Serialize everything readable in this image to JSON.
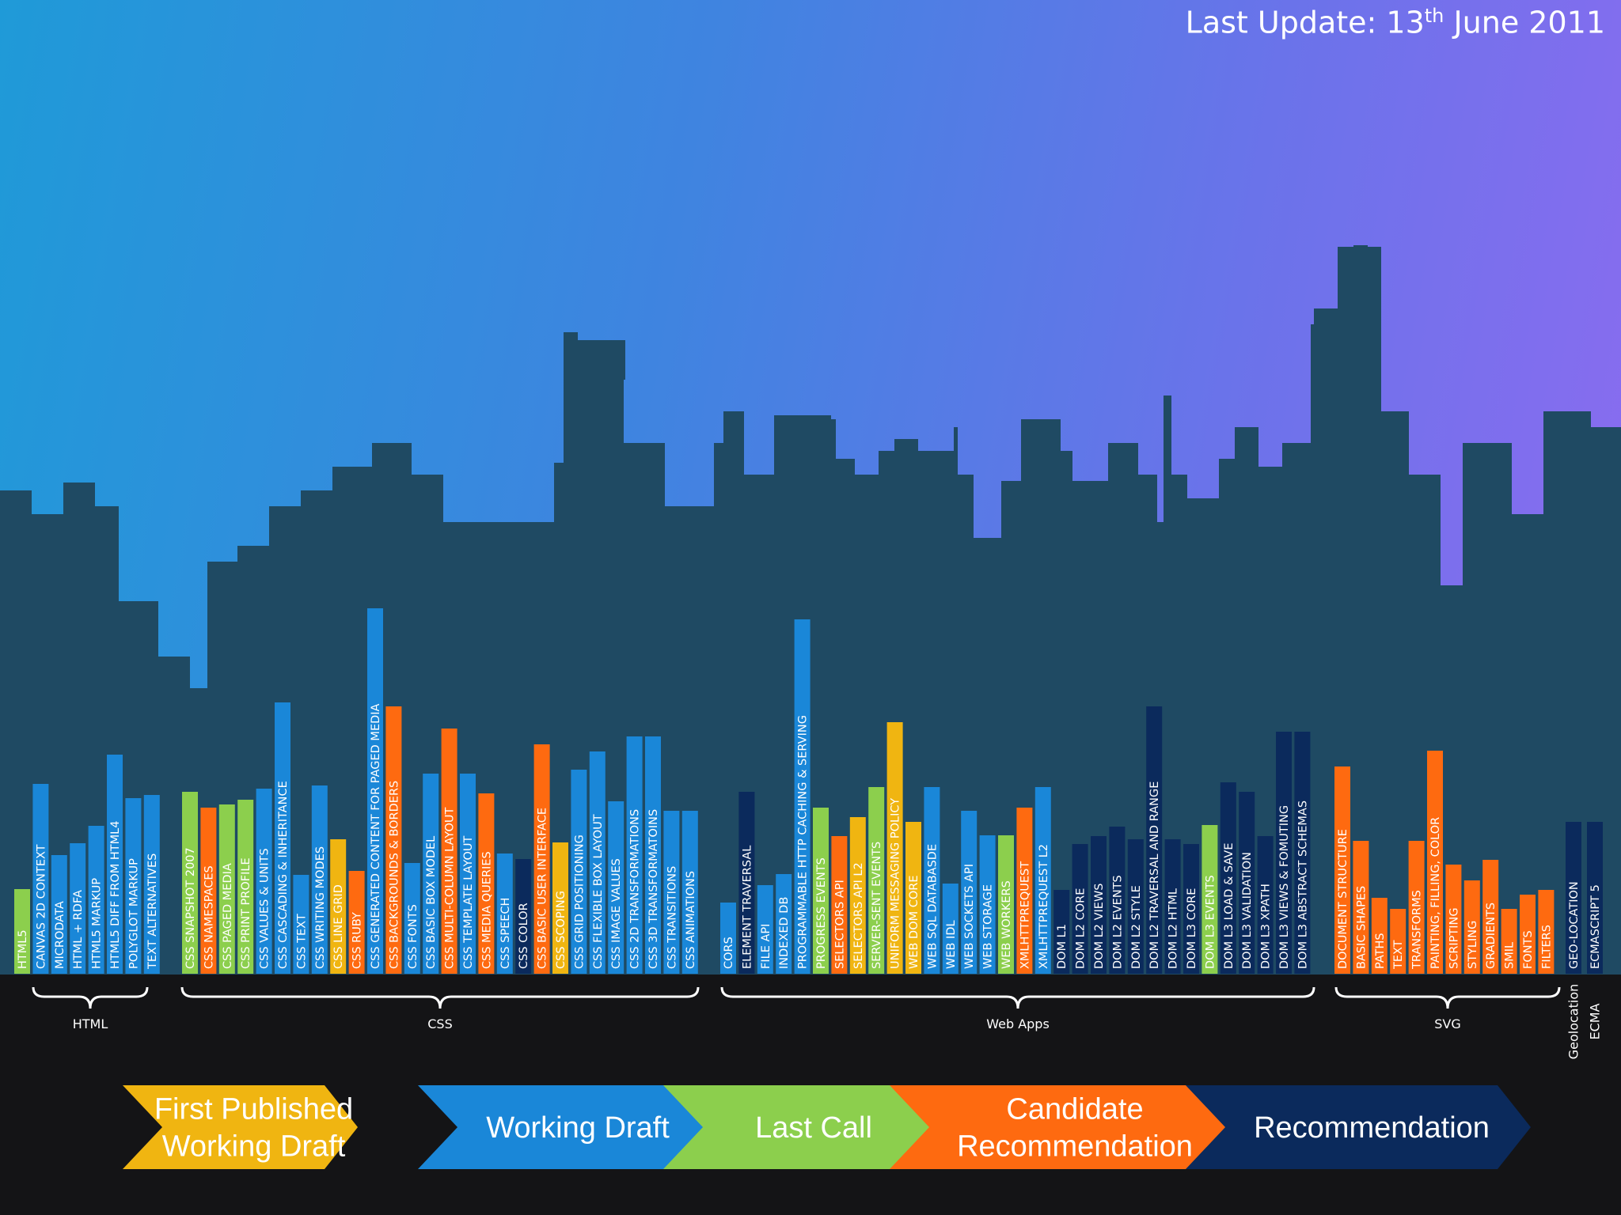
{
  "header": {
    "update_prefix": "Last Update: 13",
    "update_sup": "th",
    "update_suffix": " June 2011"
  },
  "colors": {
    "first_published_working_draft": "#f0b511",
    "working_draft": "#1a87d8",
    "last_call": "#8ccf4d",
    "candidate_recommendation": "#fe6a10",
    "recommendation": "#0b2a5c",
    "skyline": "#1f4a63"
  },
  "legend": [
    {
      "key": "first_published_working_draft",
      "lines": [
        "First Published",
        "Working Draft"
      ]
    },
    {
      "key": "working_draft",
      "lines": [
        "Working Draft"
      ]
    },
    {
      "key": "last_call",
      "lines": [
        "Last Call"
      ]
    },
    {
      "key": "candidate_recommendation",
      "lines": [
        "Candidate",
        "Recommendation"
      ]
    },
    {
      "key": "recommendation",
      "lines": [
        "Recommendation"
      ]
    }
  ],
  "chart_data": {
    "type": "bar",
    "categories": [
      "HTML",
      "CSS",
      "Web Apps",
      "SVG",
      "Geolocation",
      "ECMA"
    ],
    "series": [
      {
        "name": "HTML",
        "bars": [
          {
            "label": "HTML5",
            "status": "last_call",
            "height": 107
          },
          {
            "label": "CANVAS 2D CONTEXT",
            "status": "working_draft",
            "height": 240
          },
          {
            "label": "MICRODATA",
            "status": "working_draft",
            "height": 150
          },
          {
            "label": "HTML + RDFA",
            "status": "working_draft",
            "height": 165
          },
          {
            "label": "HTML5 MARKUP",
            "status": "working_draft",
            "height": 187
          },
          {
            "label": "HTML5 DIFF FROM HTML4",
            "status": "working_draft",
            "height": 277
          },
          {
            "label": "POLYGLOT MARKUP",
            "status": "working_draft",
            "height": 222
          },
          {
            "label": "TEXT ALTERNATIVES",
            "status": "working_draft",
            "height": 226
          }
        ]
      },
      {
        "name": "CSS",
        "bars": [
          {
            "label": "CSS SNAPSHOT 2007",
            "status": "last_call",
            "height": 230
          },
          {
            "label": "CSS NAMESPACES",
            "status": "candidate_recommendation",
            "height": 210
          },
          {
            "label": "CSS PAGED MEDIA",
            "status": "last_call",
            "height": 214
          },
          {
            "label": "CSS PRINT PROFILE",
            "status": "last_call",
            "height": 220
          },
          {
            "label": "CSS VALUES & UNITS",
            "status": "working_draft",
            "height": 234
          },
          {
            "label": "CSS CASCADING & INHERITANCE",
            "status": "working_draft",
            "height": 343
          },
          {
            "label": "CSS TEXT",
            "status": "working_draft",
            "height": 125
          },
          {
            "label": "CSS WRITING MODES",
            "status": "working_draft",
            "height": 238
          },
          {
            "label": "CSS LINE GRID",
            "status": "first_published_working_draft",
            "height": 170
          },
          {
            "label": "CSS RUBY",
            "status": "candidate_recommendation",
            "height": 130
          },
          {
            "label": "CSS GENERATED CONTENT FOR PAGED MEDIA",
            "status": "working_draft",
            "height": 462
          },
          {
            "label": "CSS BACKGROUNDS & BORDERS",
            "status": "candidate_recommendation",
            "height": 338
          },
          {
            "label": "CSS FONTS",
            "status": "working_draft",
            "height": 140
          },
          {
            "label": "CSS BASIC BOX MODEL",
            "status": "working_draft",
            "height": 253
          },
          {
            "label": "CSS MULTI-COLUMN LAYOUT",
            "status": "candidate_recommendation",
            "height": 310
          },
          {
            "label": "CSS TEMPLATE LAYOUT",
            "status": "working_draft",
            "height": 253
          },
          {
            "label": "CSS MEDIA QUERIES",
            "status": "candidate_recommendation",
            "height": 228
          },
          {
            "label": "CSS SPEECH",
            "status": "working_draft",
            "height": 152
          },
          {
            "label": "CSS COLOR",
            "status": "recommendation",
            "height": 145
          },
          {
            "label": "CSS BASIC USER INTERFACE",
            "status": "candidate_recommendation",
            "height": 290
          },
          {
            "label": "CSS SCOPING",
            "status": "first_published_working_draft",
            "height": 166
          },
          {
            "label": "CSS GRID POSITIONING",
            "status": "working_draft",
            "height": 258
          },
          {
            "label": "CSS FLEXIBLE BOX LAYOUT",
            "status": "working_draft",
            "height": 281
          },
          {
            "label": "CSS IMAGE VALUES",
            "status": "working_draft",
            "height": 218
          },
          {
            "label": "CSS 2D TRANSFORMATIONS",
            "status": "working_draft",
            "height": 300
          },
          {
            "label": "CSS 3D TRANSFORMATOINS",
            "status": "working_draft",
            "height": 300
          },
          {
            "label": "CSS TRANSITIONS",
            "status": "working_draft",
            "height": 206
          },
          {
            "label": "CSS ANIMATIONS",
            "status": "working_draft",
            "height": 206
          }
        ]
      },
      {
        "name": "Web Apps",
        "bars": [
          {
            "label": "CORS",
            "status": "working_draft",
            "height": 90
          },
          {
            "label": "ELEMENT TRAVERSAL",
            "status": "recommendation",
            "height": 230
          },
          {
            "label": "FILE API",
            "status": "working_draft",
            "height": 112
          },
          {
            "label": "INDEXED DB",
            "status": "working_draft",
            "height": 126
          },
          {
            "label": "PROGRAMMABLE HTTP CACHING & SERVING",
            "status": "working_draft",
            "height": 448
          },
          {
            "label": "PROGRESS EVENTS",
            "status": "last_call",
            "height": 210
          },
          {
            "label": "SELECTORS API",
            "status": "candidate_recommendation",
            "height": 174
          },
          {
            "label": "SELECTORS API L2",
            "status": "first_published_working_draft",
            "height": 198
          },
          {
            "label": "SERVER-SENT EVENTS",
            "status": "last_call",
            "height": 236
          },
          {
            "label": "UNIFORM MESSAGING POLICY",
            "status": "first_published_working_draft",
            "height": 318
          },
          {
            "label": "WEB DOM CORE",
            "status": "first_published_working_draft",
            "height": 192
          },
          {
            "label": "WEB SQL DATABASDE",
            "status": "working_draft",
            "height": 236
          },
          {
            "label": "WEB IDL",
            "status": "working_draft",
            "height": 114
          },
          {
            "label": "WEB SOCKETS API",
            "status": "working_draft",
            "height": 206
          },
          {
            "label": "WEB STORAGE",
            "status": "working_draft",
            "height": 175
          },
          {
            "label": "WEB WORKERS",
            "status": "last_call",
            "height": 175
          },
          {
            "label": "XMLHTTPREQUEST",
            "status": "candidate_recommendation",
            "height": 210
          },
          {
            "label": "XMLHTTPREQUEST L2",
            "status": "working_draft",
            "height": 236
          },
          {
            "label": "DOM L1",
            "status": "recommendation",
            "height": 106
          },
          {
            "label": "DOM L2 CORE",
            "status": "recommendation",
            "height": 164
          },
          {
            "label": "DOM L2 VIEWS",
            "status": "recommendation",
            "height": 174
          },
          {
            "label": "DOM L2 EVENTS",
            "status": "recommendation",
            "height": 186
          },
          {
            "label": "DOM L2 STYLE",
            "status": "recommendation",
            "height": 170
          },
          {
            "label": "DOM L2 TRAVERSAL AND RANGE",
            "status": "recommendation",
            "height": 338
          },
          {
            "label": "DOM L2 HTML",
            "status": "recommendation",
            "height": 170
          },
          {
            "label": "DOM L3 CORE",
            "status": "recommendation",
            "height": 164
          },
          {
            "label": "DOM L3 EVENTS",
            "status": "last_call",
            "height": 188
          },
          {
            "label": "DOM L3 LOAD & SAVE",
            "status": "recommendation",
            "height": 242
          },
          {
            "label": "DOM L3 VALIDATION",
            "status": "recommendation",
            "height": 230
          },
          {
            "label": "DOM L3 XPATH",
            "status": "recommendation",
            "height": 174
          },
          {
            "label": "DOM L3 VIEWS & FOMUTING",
            "status": "recommendation",
            "height": 306
          },
          {
            "label": "DOM L3 ABSTRACT SCHEMAS",
            "status": "recommendation",
            "height": 306
          }
        ]
      },
      {
        "name": "SVG",
        "bars": [
          {
            "label": "DOCUMENT STRUCTURE",
            "status": "candidate_recommendation",
            "height": 262
          },
          {
            "label": "BASIC SHAPES",
            "status": "candidate_recommendation",
            "height": 168
          },
          {
            "label": "PATHS",
            "status": "candidate_recommendation",
            "height": 96
          },
          {
            "label": "TEXT",
            "status": "candidate_recommendation",
            "height": 82
          },
          {
            "label": "TRANSFORMS",
            "status": "candidate_recommendation",
            "height": 168
          },
          {
            "label": "PAINTING, FILLING, COLOR",
            "status": "candidate_recommendation",
            "height": 282
          },
          {
            "label": "SCRIPTING",
            "status": "candidate_recommendation",
            "height": 138
          },
          {
            "label": "STYLING",
            "status": "candidate_recommendation",
            "height": 118
          },
          {
            "label": "GRADIENTS",
            "status": "candidate_recommendation",
            "height": 144
          },
          {
            "label": "SMIL",
            "status": "candidate_recommendation",
            "height": 82
          },
          {
            "label": "FONTS",
            "status": "candidate_recommendation",
            "height": 100
          },
          {
            "label": "FILTERS",
            "status": "candidate_recommendation",
            "height": 106
          }
        ]
      },
      {
        "name": "Geolocation",
        "bars": [
          {
            "label": "GEO-LOCATION",
            "status": "recommendation",
            "height": 192
          }
        ]
      },
      {
        "name": "ECMA",
        "bars": [
          {
            "label": "ECMASCRIPT 5",
            "status": "recommendation",
            "height": 192
          }
        ]
      }
    ]
  }
}
